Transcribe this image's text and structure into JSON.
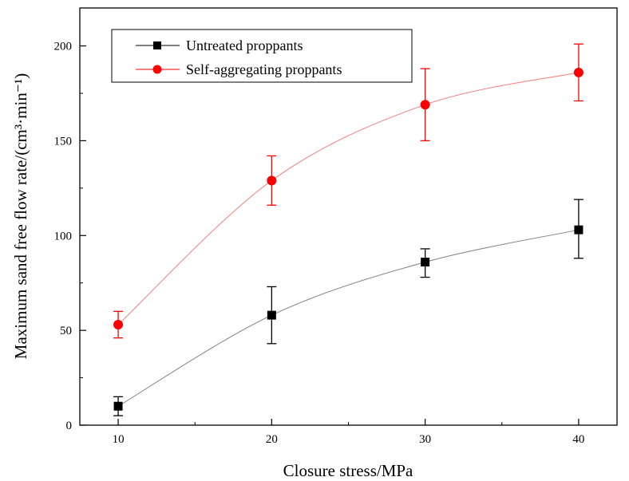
{
  "chart_data": {
    "type": "scatter",
    "title": "",
    "xlabel": "Closure stress/MPa",
    "ylabel": "Maximum sand free flow rate/(cm³·min⁻¹)",
    "xlim": [
      7.5,
      42.5
    ],
    "ylim": [
      0,
      220
    ],
    "x_ticks": [
      10,
      20,
      30,
      40
    ],
    "y_ticks": [
      0,
      50,
      100,
      150,
      200
    ],
    "x": [
      10,
      20,
      30,
      40
    ],
    "grid": false,
    "legend_position": "top-left",
    "series": [
      {
        "name": "Untreated proppants",
        "color": "#000000",
        "line_color": "#8c8c8c",
        "marker": "square",
        "values": [
          10,
          58,
          86,
          103
        ],
        "err_low": [
          5,
          43,
          78,
          88
        ],
        "err_high": [
          15,
          73,
          93,
          119
        ]
      },
      {
        "name": "Self-aggregating proppants",
        "color": "#ff0000",
        "line_color": "#f08a8a",
        "marker": "circle",
        "values": [
          53,
          129,
          169,
          186
        ],
        "err_low": [
          46,
          116,
          150,
          171
        ],
        "err_high": [
          60,
          142,
          188,
          201
        ]
      }
    ]
  }
}
